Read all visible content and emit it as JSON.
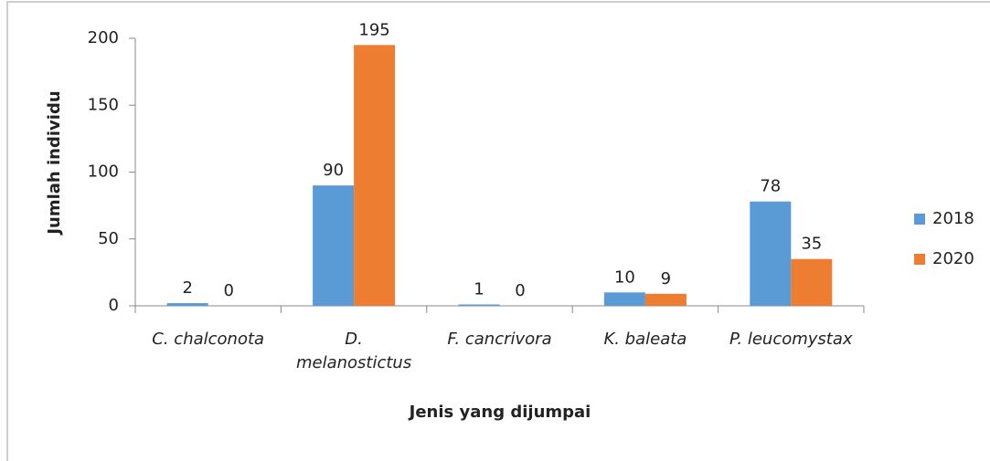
{
  "chart_data": {
    "type": "bar",
    "x_label": "Jenis yang dijumpai",
    "y_label": "Jumlah individu",
    "categories": [
      "C. chalconota",
      "D. melanostictus",
      "F. cancrivora",
      "K. baleata",
      "P. leucomystax"
    ],
    "series": [
      {
        "name": "2018",
        "color": "#5b9bd5",
        "values": [
          2,
          90,
          1,
          10,
          78
        ]
      },
      {
        "name": "2020",
        "color": "#ed7d31",
        "values": [
          0,
          195,
          0,
          9,
          35
        ]
      }
    ],
    "ylim": [
      0,
      200
    ],
    "yticks": [
      0,
      50,
      100,
      150,
      200
    ],
    "grid": false,
    "legend": "right"
  }
}
